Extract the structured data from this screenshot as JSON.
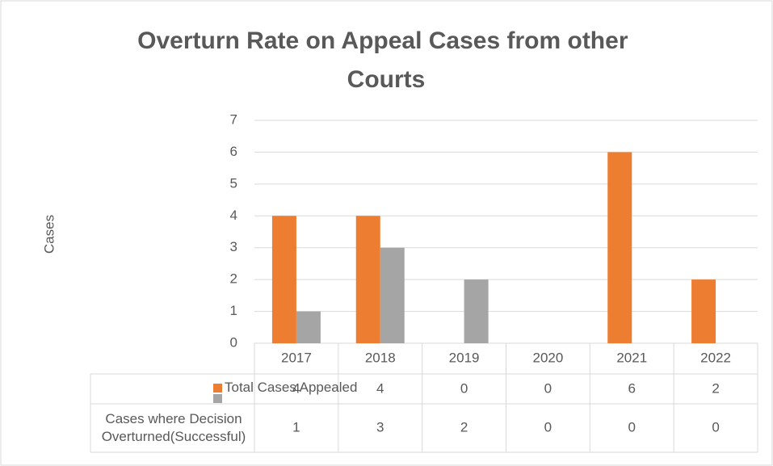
{
  "chart_data": {
    "type": "bar",
    "title": "Overturn Rate on Appeal Cases from other Courts",
    "y_label": "Cases",
    "categories": [
      "2017",
      "2018",
      "2019",
      "2020",
      "2021",
      "2022"
    ],
    "series": [
      {
        "name": "Total Cases Appealed",
        "color": "#ed7d31",
        "values": [
          4,
          4,
          0,
          0,
          6,
          2
        ]
      },
      {
        "name": "Cases where Decision Overturned(Successful)",
        "color": "#a5a5a5",
        "values": [
          1,
          3,
          2,
          0,
          0,
          0
        ]
      }
    ],
    "ylim": [
      0,
      7
    ],
    "yticks": [
      0,
      1,
      2,
      3,
      4,
      5,
      6,
      7
    ],
    "grid": true
  }
}
